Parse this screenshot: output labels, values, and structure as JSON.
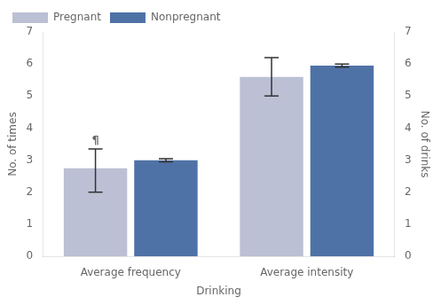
{
  "chart_data": {
    "type": "bar",
    "categories": [
      "Average frequency",
      "Average intensity"
    ],
    "series": [
      {
        "name": "Pregnant",
        "color": "#bcc0d4",
        "values": [
          2.75,
          5.6
        ],
        "error_lower": [
          0.75,
          0.6
        ],
        "error_upper": [
          0.6,
          0.6
        ]
      },
      {
        "name": "Nonpregnant",
        "color": "#4f72a6",
        "values": [
          3.0,
          5.95
        ],
        "error_lower": [
          0.05,
          0.05
        ],
        "error_upper": [
          0.05,
          0.05
        ]
      }
    ],
    "xlabel": "Drinking",
    "ylabel": "No. of times",
    "y2label": "No. of drinks",
    "ylim": [
      0,
      7
    ],
    "yticks": [
      0,
      1,
      2,
      3,
      4,
      5,
      6,
      7
    ],
    "y2lim": [
      0,
      7
    ],
    "y2ticks": [
      0,
      1,
      2,
      3,
      4,
      5,
      6,
      7
    ],
    "legend": "upper left",
    "grid": false,
    "annotations": [
      {
        "text": "¶",
        "category": "Average frequency",
        "series": "Pregnant"
      }
    ]
  }
}
